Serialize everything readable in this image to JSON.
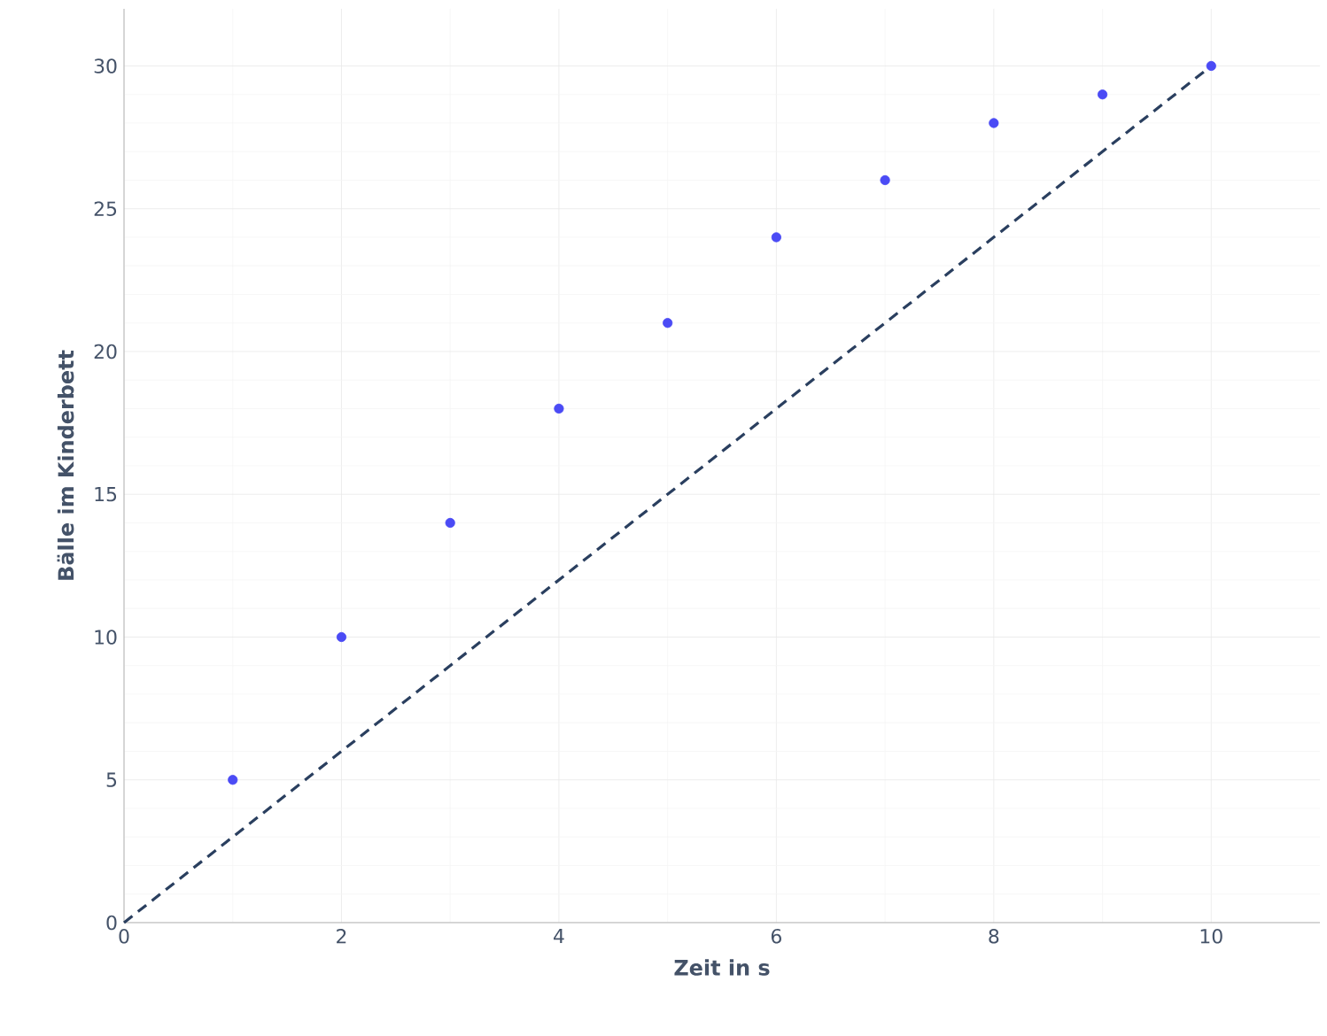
{
  "chart_data": {
    "type": "scatter",
    "xlabel": "Zeit in s",
    "ylabel": "Bälle im Kinderbett",
    "xlim": [
      0,
      11
    ],
    "ylim": [
      0,
      32
    ],
    "xticks": [
      0,
      2,
      4,
      6,
      8,
      10
    ],
    "yticks": [
      0,
      5,
      10,
      15,
      20,
      25,
      30
    ],
    "grid": true,
    "series": [
      {
        "color": "#4b4bf5",
        "marker": "circle",
        "x": [
          1,
          2,
          3,
          4,
          5,
          6,
          7,
          8,
          9,
          10
        ],
        "values": [
          5,
          10,
          14,
          18,
          21,
          24,
          26,
          28,
          29,
          30
        ]
      },
      {
        "type": "line",
        "color": "#2a3f5f",
        "line_style": "dashed",
        "marker": "none",
        "x": [
          0,
          10
        ],
        "values": [
          0,
          30
        ]
      }
    ]
  }
}
